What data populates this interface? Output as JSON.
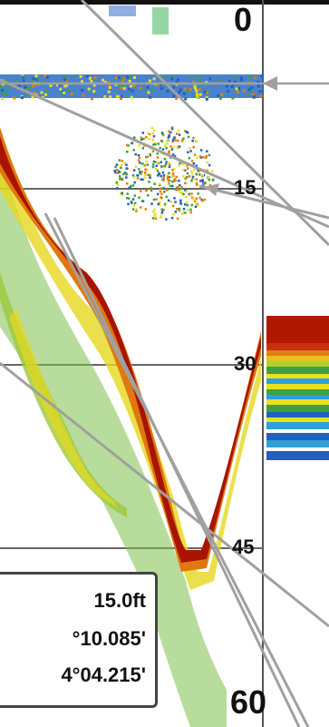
{
  "depth_scale": {
    "top": "0",
    "mark_15": "15",
    "mark_30": "30",
    "mark_45": "45",
    "bottom": "60"
  },
  "info_box": {
    "depth": "15.0ft",
    "latitude": "°10.085'",
    "longitude": "4°04.215'"
  },
  "colors": {
    "strong_return": "#b01800",
    "medium_return": "#e08010",
    "weak_return": "#e8e020",
    "faint_return": "#40a040",
    "noise": "#2060c0",
    "scale_line": "#555555",
    "pointer": "#a0a0a0"
  }
}
